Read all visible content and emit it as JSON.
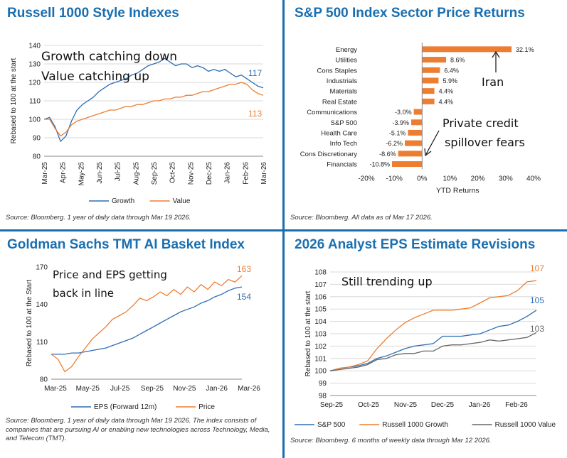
{
  "panels": {
    "p1": {
      "title": "Russell 1000 Style Indexes",
      "source": "Source: Bloomberg. 1 year of daily data through Mar 19 2026."
    },
    "p2": {
      "title": "S&P 500 Index Sector Price Returns",
      "source": "Source: Bloomberg. All data as of Mar 17 2026."
    },
    "p3": {
      "title": "Goldman Sachs TMT AI Basket Index",
      "source": "Source: Bloomberg. 1 year of daily data through Mar 19 2026. The index consists of companies that are pursuing AI or enabling new technologies across Technology, Media, and Telecom (TMT)."
    },
    "p4": {
      "title": "2026 Analyst EPS Estimate Revisions",
      "source": "Source: Bloomberg. 6 months of weekly data through Mar 12 2026."
    }
  },
  "colors": {
    "blue": "#2e6db3",
    "orange": "#ed7d31",
    "gray": "#666666",
    "accent": "#1a6fb0"
  },
  "chart_data": [
    {
      "type": "line",
      "id": "russell",
      "ylabel": "Rebased to 100 at the start",
      "ylim": [
        80,
        140
      ],
      "yticks": [
        "80",
        "90",
        "100",
        "110",
        "120",
        "130",
        "140"
      ],
      "xticks": [
        "Mar-25",
        "Apr-25",
        "May-25",
        "Jun-25",
        "Jul-25",
        "Aug-25",
        "Sep-25",
        "Oct-25",
        "Nov-25",
        "Dec-25",
        "Jan-26",
        "Feb-26",
        "Mar-26"
      ],
      "annotations": [
        "Growth catching down",
        "Value catching up"
      ],
      "end_labels": [
        "117",
        "113"
      ],
      "series": [
        {
          "name": "Growth",
          "color": "#2e6db3",
          "values": [
            100,
            101,
            96,
            88,
            91,
            99,
            105,
            108,
            110,
            112,
            115,
            117,
            119,
            120,
            121,
            122,
            124,
            125,
            127,
            129,
            130,
            131,
            133,
            131,
            129,
            130,
            130,
            128,
            129,
            128,
            126,
            127,
            126,
            127,
            125,
            123,
            124,
            122,
            120,
            118,
            117
          ]
        },
        {
          "name": "Value",
          "color": "#ed7d31",
          "values": [
            100,
            100,
            95,
            91,
            93,
            97,
            99,
            100,
            101,
            102,
            103,
            104,
            105,
            105,
            106,
            107,
            107,
            108,
            108,
            109,
            110,
            110,
            111,
            111,
            112,
            112,
            113,
            113,
            114,
            115,
            115,
            116,
            117,
            118,
            119,
            119,
            120,
            119,
            116,
            114,
            113
          ]
        }
      ]
    },
    {
      "type": "bar",
      "id": "sectors",
      "xlabel": "YTD Returns",
      "xlim": [
        -20,
        40
      ],
      "xticks": [
        "-20%",
        "-10%",
        "0%",
        "10%",
        "20%",
        "30%",
        "40%"
      ],
      "categories": [
        "Energy",
        "Utilities",
        "Cons Staples",
        "Industrials",
        "Materials",
        "Real Estate",
        "Communications",
        "S&P 500",
        "Health Care",
        "Info Tech",
        "Cons Discretionary",
        "Financials"
      ],
      "values": [
        32.1,
        8.6,
        6.4,
        5.9,
        4.4,
        4.4,
        -3.0,
        -3.9,
        -5.1,
        -6.2,
        -8.6,
        -10.8
      ],
      "value_labels": [
        "32.1%",
        "8.6%",
        "6.4%",
        "5.9%",
        "4.4%",
        "4.4%",
        "-3.0%",
        "-3.9%",
        "-5.1%",
        "-6.2%",
        "-8.6%",
        "-10.8%"
      ],
      "annotations": [
        "Iran",
        "Private credit",
        "spillover fears"
      ]
    },
    {
      "type": "line",
      "id": "tmt",
      "ylabel": "Rebased to 100 at the Start",
      "ylim": [
        80,
        170
      ],
      "yticks": [
        "80",
        "110",
        "140",
        "170"
      ],
      "xticks": [
        "Mar-25",
        "May-25",
        "Jul-25",
        "Sep-25",
        "Nov-25",
        "Jan-26",
        "Mar-26"
      ],
      "annotations": [
        "Price and EPS getting",
        "back in line"
      ],
      "end_labels": [
        "163",
        "154"
      ],
      "series": [
        {
          "name": "EPS (Forward 12m)",
          "color": "#2e6db3",
          "values": [
            100,
            100,
            100,
            101,
            101,
            102,
            103,
            104,
            105,
            107,
            109,
            111,
            113,
            116,
            119,
            122,
            125,
            128,
            131,
            134,
            136,
            138,
            141,
            143,
            146,
            148,
            151,
            153,
            154
          ]
        },
        {
          "name": "Price",
          "color": "#ed7d31",
          "values": [
            100,
            96,
            86,
            90,
            98,
            105,
            112,
            117,
            122,
            128,
            131,
            134,
            139,
            145,
            143,
            146,
            150,
            147,
            152,
            148,
            154,
            150,
            156,
            152,
            158,
            155,
            160,
            158,
            163
          ]
        }
      ]
    },
    {
      "type": "line",
      "id": "eps",
      "ylabel": "Rebased to 100 at the start",
      "ylim": [
        98,
        108
      ],
      "yticks": [
        "98",
        "99",
        "100",
        "101",
        "102",
        "103",
        "104",
        "105",
        "106",
        "107",
        "108"
      ],
      "xticks": [
        "Sep-25",
        "Oct-25",
        "Nov-25",
        "Dec-25",
        "Jan-26",
        "Feb-26"
      ],
      "annotations": [
        "Still trending up"
      ],
      "end_labels": [
        "107",
        "105",
        "103"
      ],
      "series": [
        {
          "name": "S&P 500",
          "color": "#2e6db3",
          "values": [
            100,
            100.2,
            100.3,
            100.4,
            100.6,
            101.0,
            101.2,
            101.5,
            101.8,
            102.0,
            102.1,
            102.2,
            102.8,
            102.8,
            102.8,
            102.9,
            103.0,
            103.3,
            103.6,
            103.7,
            104.0,
            104.4,
            104.9
          ]
        },
        {
          "name": "Russell 1000 Growth",
          "color": "#ed7d31",
          "values": [
            100,
            100.2,
            100.3,
            100.5,
            100.8,
            101.8,
            102.6,
            103.3,
            103.9,
            104.3,
            104.6,
            104.9,
            104.9,
            104.9,
            105.0,
            105.1,
            105.5,
            105.9,
            106.0,
            106.1,
            106.5,
            107.2,
            107.3
          ]
        },
        {
          "name": "Russell 1000 Value",
          "color": "#666666",
          "values": [
            100,
            100.1,
            100.2,
            100.3,
            100.5,
            100.9,
            101.0,
            101.3,
            101.4,
            101.4,
            101.6,
            101.6,
            102.0,
            102.1,
            102.1,
            102.2,
            102.3,
            102.5,
            102.4,
            102.5,
            102.6,
            102.7,
            103.1
          ]
        }
      ]
    }
  ]
}
